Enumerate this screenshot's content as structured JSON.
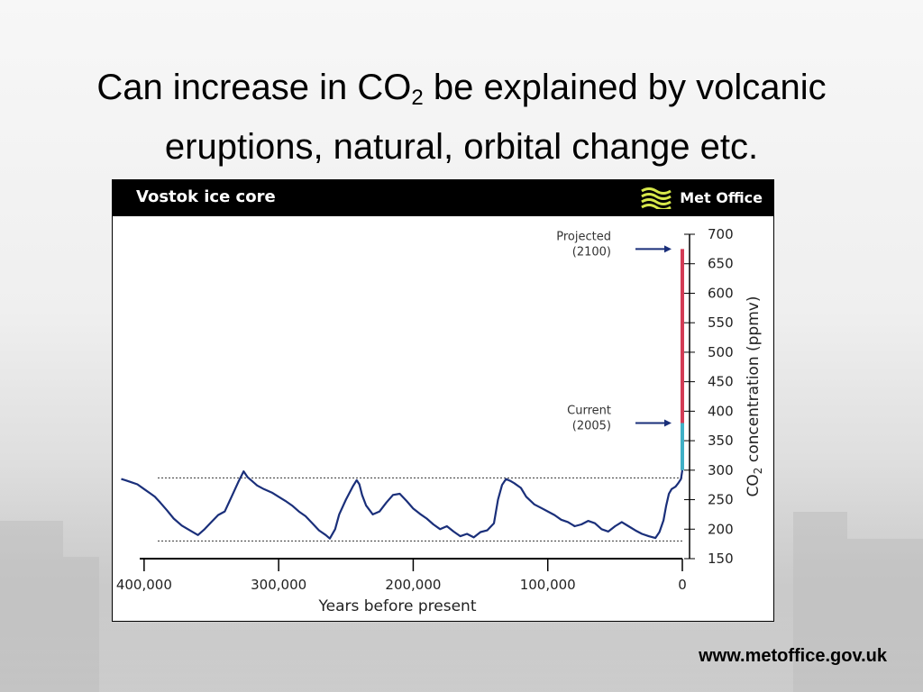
{
  "slide": {
    "title_before_sub": "Can increase in CO",
    "title_sub": "2",
    "title_after_sub": " be explained by volcanic",
    "title_line2": "eruptions, natural, orbital change etc.",
    "url": "www.metoffice.gov.uk"
  },
  "panel": {
    "title": "Vostok ice core",
    "brand": "Met Office",
    "brand_icon": "met-office-wave-logo",
    "brand_color": "#d7e84a"
  },
  "colors": {
    "series": "#1a2f7a",
    "projected_bar": "#d33b55",
    "current_bar": "#3fb0c6",
    "arrow": "#1a2f7a"
  },
  "chart_data": {
    "type": "line",
    "title": "Vostok ice core",
    "xlabel": "Years before present",
    "ylabel_main": "CO",
    "ylabel_sub": "2",
    "ylabel_tail": " concentration (ppmv)",
    "xlim": [
      420000,
      0
    ],
    "ylim": [
      150,
      700
    ],
    "x_ticks": [
      400000,
      300000,
      200000,
      100000,
      0
    ],
    "x_tick_labels": [
      "400,000",
      "300,000",
      "200,000",
      "100,000",
      "0"
    ],
    "y_ticks": [
      150,
      200,
      250,
      300,
      350,
      400,
      450,
      500,
      550,
      600,
      650,
      700
    ],
    "y_tick_labels": [
      "150",
      "200",
      "250",
      "300",
      "350",
      "400",
      "450",
      "500",
      "550",
      "600",
      "650",
      "700"
    ],
    "reference_lines": [
      287,
      180
    ],
    "series": [
      {
        "x": [
          417000,
          414000,
          410000,
          405000,
          400000,
          395000,
          392000,
          388000,
          383000,
          378000,
          372000,
          366000,
          360000,
          355000,
          350000,
          345000,
          340000,
          335000,
          330000,
          326000,
          323000,
          320000,
          316000,
          311000,
          305000,
          300000,
          295000,
          290000,
          285000,
          280000,
          275000,
          270000,
          265000,
          262000,
          258000,
          255000,
          250000,
          245000,
          242000,
          240000,
          238000,
          235000,
          230000,
          225000,
          220000,
          215000,
          210000,
          205000,
          200000,
          195000,
          190000,
          185000,
          180000,
          175000,
          170000,
          165000,
          160000,
          155000,
          150000,
          145000,
          140000,
          137000,
          134000,
          131000,
          128000,
          125000,
          120000,
          116000,
          110000,
          105000,
          100000,
          95000,
          90000,
          85000,
          80000,
          75000,
          70000,
          65000,
          60000,
          55000,
          50000,
          45000,
          40000,
          35000,
          30000,
          25000,
          20000,
          17000,
          14000,
          12000,
          10000,
          8000,
          5000,
          3000,
          1000,
          0
        ],
        "y": [
          285,
          283,
          280,
          276,
          268,
          260,
          255,
          245,
          232,
          218,
          206,
          198,
          190,
          200,
          212,
          224,
          230,
          255,
          280,
          298,
          288,
          282,
          274,
          268,
          262,
          255,
          248,
          240,
          230,
          222,
          210,
          198,
          190,
          184,
          200,
          225,
          250,
          272,
          283,
          276,
          258,
          240,
          225,
          230,
          245,
          258,
          260,
          248,
          235,
          226,
          218,
          208,
          200,
          205,
          196,
          188,
          192,
          186,
          195,
          198,
          210,
          250,
          275,
          285,
          282,
          278,
          270,
          255,
          242,
          236,
          230,
          224,
          216,
          212,
          205,
          208,
          214,
          210,
          200,
          196,
          205,
          212,
          205,
          198,
          192,
          188,
          185,
          195,
          215,
          240,
          260,
          268,
          272,
          278,
          285,
          300
        ]
      }
    ],
    "current_bar": [
      300,
      380
    ],
    "projected_bar": [
      380,
      675
    ],
    "annotations": [
      {
        "label_line1": "Projected",
        "label_line2": "(2100)",
        "value": 675
      },
      {
        "label_line1": "Current",
        "label_line2": "(2005)",
        "value": 380
      }
    ]
  }
}
